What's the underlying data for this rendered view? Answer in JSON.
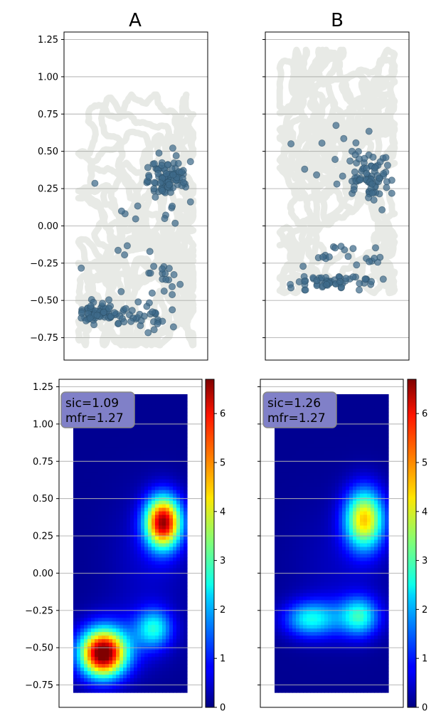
{
  "chart_data": [
    {
      "type": "scatter",
      "panel": "top-left",
      "title": "A",
      "xlabel": "",
      "ylabel": "",
      "ylim": [
        -0.9,
        1.3
      ],
      "yticks": [
        -0.75,
        -0.5,
        -0.25,
        0.0,
        0.25,
        0.5,
        0.75,
        1.0,
        1.25
      ],
      "ytick_labels": [
        "−0.75",
        "−0.50",
        "−0.25",
        "0.00",
        "0.25",
        "0.50",
        "0.75",
        "1.00",
        "1.25"
      ],
      "grid": "y",
      "series": [
        {
          "role": "trajectory",
          "color": "#aeb3a5",
          "x_range": [
            0.1,
            0.9
          ],
          "y_range": [
            -0.8,
            0.88
          ]
        },
        {
          "role": "spikes",
          "color": "#3f6b8a",
          "clusters": [
            {
              "center": [
                0.72,
                0.32
              ],
              "spread": [
                0.14,
                0.18
              ],
              "count": 95
            },
            {
              "center": [
                0.25,
                -0.58
              ],
              "spread": [
                0.16,
                0.07
              ],
              "count": 70
            },
            {
              "center": [
                0.55,
                -0.62
              ],
              "spread": [
                0.22,
                0.1
              ],
              "count": 30
            },
            {
              "center": [
                0.7,
                -0.35
              ],
              "spread": [
                0.1,
                0.15
              ],
              "count": 18
            },
            {
              "center": [
                0.5,
                0.05
              ],
              "spread": [
                0.35,
                0.45
              ],
              "count": 14
            }
          ]
        }
      ]
    },
    {
      "type": "scatter",
      "panel": "top-right",
      "title": "B",
      "xlabel": "",
      "ylabel": "",
      "ylim": [
        -0.9,
        1.3
      ],
      "ytick_labels_shown": false,
      "grid": "y",
      "series": [
        {
          "role": "trajectory",
          "color": "#aeb3a5",
          "x_range": [
            0.1,
            0.9
          ],
          "y_range": [
            -0.45,
            1.18
          ]
        },
        {
          "role": "spikes",
          "color": "#3f6b8a",
          "clusters": [
            {
              "center": [
                0.72,
                0.32
              ],
              "spread": [
                0.13,
                0.17
              ],
              "count": 70
            },
            {
              "center": [
                0.45,
                -0.38
              ],
              "spread": [
                0.3,
                0.05
              ],
              "count": 55
            },
            {
              "center": [
                0.5,
                -0.2
              ],
              "spread": [
                0.28,
                0.1
              ],
              "count": 20
            },
            {
              "center": [
                0.5,
                0.5
              ],
              "spread": [
                0.35,
                0.3
              ],
              "count": 14
            }
          ]
        }
      ]
    },
    {
      "type": "heatmap",
      "panel": "bottom-left",
      "annotation": [
        "sic=1.09",
        "mfr=1.27"
      ],
      "ylim": [
        -0.9,
        1.3
      ],
      "yticks": [
        -0.75,
        -0.5,
        -0.25,
        0.0,
        0.25,
        0.5,
        0.75,
        1.0,
        1.25
      ],
      "ytick_labels": [
        "−0.75",
        "−0.50",
        "−0.25",
        "0.00",
        "0.25",
        "0.50",
        "0.75",
        "1.00",
        "1.25"
      ],
      "extent_y": [
        -0.8,
        1.2
      ],
      "colormap": "jet",
      "colorbar": {
        "min": 0,
        "max": 6.7,
        "ticks": [
          0,
          1,
          2,
          3,
          4,
          5,
          6
        ],
        "tick_labels": [
          "0",
          "1",
          "2",
          "3",
          "4",
          "5",
          "6"
        ]
      },
      "peaks": [
        {
          "x": 0.79,
          "y": 0.34,
          "rate": 6.2,
          "sx": 0.11,
          "sy": 0.12
        },
        {
          "x": 0.26,
          "y": -0.54,
          "rate": 6.7,
          "sx": 0.14,
          "sy": 0.11
        },
        {
          "x": 0.71,
          "y": -0.37,
          "rate": 2.2,
          "sx": 0.11,
          "sy": 0.09
        },
        {
          "x": 0.45,
          "y": -0.45,
          "rate": 0.6,
          "sx": 0.25,
          "sy": 0.15
        },
        {
          "x": 0.68,
          "y": 0.1,
          "rate": 0.4,
          "sx": 0.25,
          "sy": 0.3
        }
      ]
    },
    {
      "type": "heatmap",
      "panel": "bottom-right",
      "annotation": [
        "sic=1.26",
        "mfr=1.27"
      ],
      "ylim": [
        -0.9,
        1.3
      ],
      "ytick_labels_shown": false,
      "extent_y": [
        -0.8,
        1.2
      ],
      "colormap": "jet",
      "colorbar": {
        "min": 0,
        "max": 6.7,
        "ticks": [
          0,
          1,
          2,
          3,
          4,
          5,
          6
        ],
        "tick_labels": [
          "0",
          "1",
          "2",
          "3",
          "4",
          "5",
          "6"
        ]
      },
      "peaks": [
        {
          "x": 0.79,
          "y": 0.36,
          "rate": 4.3,
          "sx": 0.12,
          "sy": 0.14
        },
        {
          "x": 0.3,
          "y": -0.31,
          "rate": 1.85,
          "sx": 0.15,
          "sy": 0.08
        },
        {
          "x": 0.75,
          "y": -0.29,
          "rate": 2.0,
          "sx": 0.11,
          "sy": 0.09
        },
        {
          "x": 0.55,
          "y": -0.3,
          "rate": 0.9,
          "sx": 0.25,
          "sy": 0.1
        },
        {
          "x": 0.6,
          "y": 0.05,
          "rate": 0.3,
          "sx": 0.3,
          "sy": 0.3
        }
      ]
    }
  ]
}
